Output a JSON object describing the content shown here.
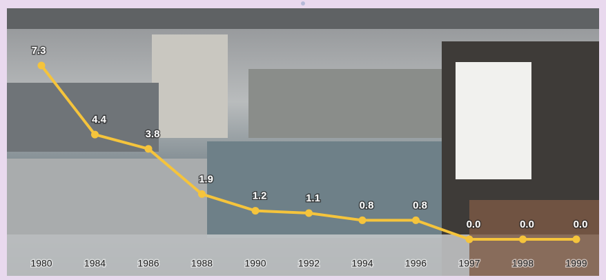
{
  "chart_data": {
    "type": "line",
    "categories": [
      "1980",
      "1984",
      "1986",
      "1988",
      "1990",
      "1992",
      "1994",
      "1996",
      "1997",
      "1998",
      "1999"
    ],
    "values": [
      7.3,
      4.4,
      3.8,
      1.9,
      1.2,
      1.1,
      0.8,
      0.8,
      0.0,
      0.0,
      0.0
    ],
    "value_labels": [
      "7.3",
      "4.4",
      "3.8",
      "1.9",
      "1.2",
      "1.1",
      "0.8",
      "0.8",
      "0.0",
      "0.0",
      "0.0"
    ],
    "color": "#f5c43c"
  }
}
